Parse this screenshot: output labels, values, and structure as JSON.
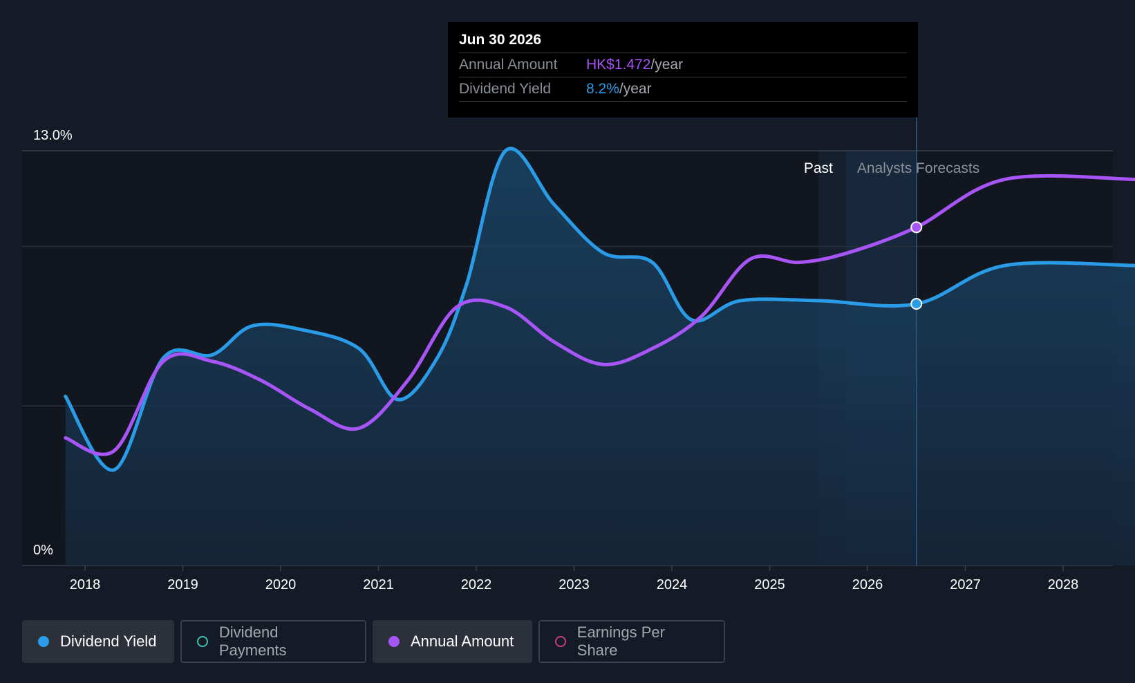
{
  "tooltip": {
    "date": "Jun 30 2026",
    "annual_label": "Annual Amount",
    "annual_value": "HK$1.472",
    "yield_label": "Dividend Yield",
    "yield_value": "8.2%",
    "unit": "/year"
  },
  "legend": [
    {
      "label": "Dividend Yield",
      "color": "#2a9be6",
      "active": true
    },
    {
      "label": "Dividend Payments",
      "color": "#3cc0b4",
      "active": false
    },
    {
      "label": "Annual Amount",
      "color": "#a855f7",
      "active": true
    },
    {
      "label": "Earnings Per Share",
      "color": "#c2417a",
      "active": false
    }
  ],
  "chart_data": {
    "type": "line",
    "ylim": [
      0,
      13
    ],
    "y_tick_labels": [
      "0%",
      "13.0%"
    ],
    "gridlines": [
      13,
      10,
      5,
      0
    ],
    "x_ticks": [
      2018,
      2019,
      2020,
      2021,
      2022,
      2023,
      2024,
      2025,
      2026,
      2027,
      2028
    ],
    "x_range": [
      2017.45,
      2028.75
    ],
    "past_label": "Past",
    "forecast_label": "Analysts Forecasts",
    "past_start": 2025.5,
    "forecast_start": 2025.78,
    "hover_x": 2026.5,
    "series": [
      {
        "name": "Dividend Yield",
        "color": "#2a9be6",
        "unit": "%",
        "filled": true,
        "points": [
          [
            2017.8,
            5.3
          ],
          [
            2018.3,
            3.0
          ],
          [
            2018.8,
            6.5
          ],
          [
            2019.3,
            6.6
          ],
          [
            2019.7,
            7.5
          ],
          [
            2020.2,
            7.4
          ],
          [
            2020.8,
            6.8
          ],
          [
            2021.2,
            5.2
          ],
          [
            2021.6,
            6.5
          ],
          [
            2021.9,
            8.8
          ],
          [
            2022.3,
            13.0
          ],
          [
            2022.8,
            11.3
          ],
          [
            2023.3,
            9.8
          ],
          [
            2023.8,
            9.5
          ],
          [
            2024.2,
            7.7
          ],
          [
            2024.7,
            8.3
          ],
          [
            2025.5,
            8.3
          ],
          [
            2026.5,
            8.2
          ],
          [
            2027.4,
            9.4
          ],
          [
            2028.75,
            9.4
          ]
        ]
      },
      {
        "name": "Annual Amount",
        "color": "#a855f7",
        "unit": "HK$",
        "filled": false,
        "points": [
          [
            2017.8,
            4.0
          ],
          [
            2018.3,
            3.6
          ],
          [
            2018.8,
            6.4
          ],
          [
            2019.3,
            6.4
          ],
          [
            2019.8,
            5.8
          ],
          [
            2020.3,
            4.9
          ],
          [
            2020.8,
            4.3
          ],
          [
            2021.3,
            5.8
          ],
          [
            2021.8,
            8.1
          ],
          [
            2022.3,
            8.1
          ],
          [
            2022.8,
            7.0
          ],
          [
            2023.3,
            6.3
          ],
          [
            2023.8,
            6.8
          ],
          [
            2024.3,
            7.8
          ],
          [
            2024.8,
            9.6
          ],
          [
            2025.3,
            9.5
          ],
          [
            2025.8,
            9.8
          ],
          [
            2026.5,
            10.6
          ],
          [
            2027.4,
            12.1
          ],
          [
            2028.75,
            12.1
          ]
        ]
      }
    ]
  }
}
